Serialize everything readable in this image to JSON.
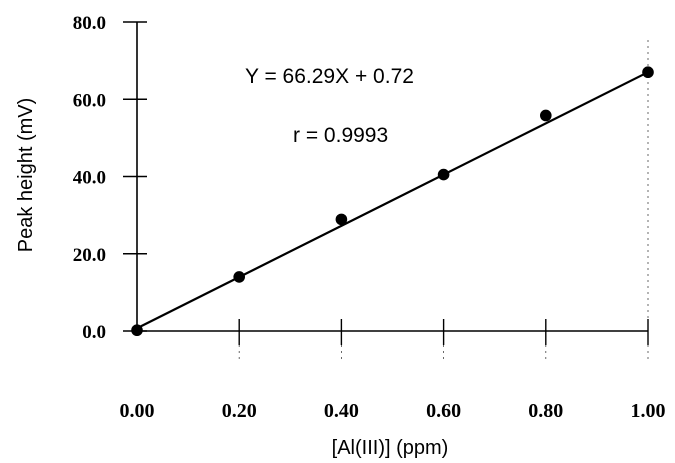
{
  "chart_data": {
    "type": "scatter",
    "title": "",
    "xlabel": "[Al(III)] (ppm)",
    "ylabel": "Peak height (mV)",
    "xlim": [
      0,
      1.0
    ],
    "ylim": [
      0,
      80
    ],
    "x_ticks": [
      "0.00",
      "0.20",
      "0.40",
      "0.60",
      "0.80",
      "1.00"
    ],
    "y_ticks": [
      "0.0",
      "20.0",
      "40.0",
      "60.0",
      "80.0"
    ],
    "series": [
      {
        "points": [
          {
            "x": 0.0,
            "y": 0.2
          },
          {
            "x": 0.2,
            "y": 14.0
          },
          {
            "x": 0.4,
            "y": 28.9
          },
          {
            "x": 0.6,
            "y": 40.5
          },
          {
            "x": 0.8,
            "y": 55.8
          },
          {
            "x": 1.0,
            "y": 67.0
          }
        ],
        "marker": "filled-circle",
        "color": "#000000"
      }
    ],
    "fit": {
      "slope": 66.29,
      "intercept": 0.72,
      "color": "#000000"
    },
    "annotations": [
      "Y = 66.29X + 0.72",
      "r = 0.9993"
    ],
    "grid": false,
    "legend": "none"
  }
}
